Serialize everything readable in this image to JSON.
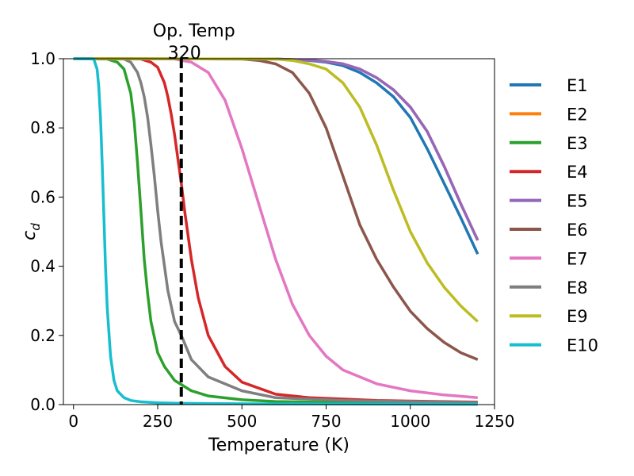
{
  "chart_data": {
    "type": "line",
    "title": "",
    "xlabel": "Temperature (K)",
    "ylabel": "c_d",
    "xlim": [
      -30,
      1250
    ],
    "ylim": [
      0,
      1
    ],
    "xticks": [
      "0",
      "250",
      "500",
      "750",
      "1000",
      "1250"
    ],
    "xtick_values": [
      0,
      250,
      500,
      750,
      1000,
      1250
    ],
    "yticks": [
      "0.0",
      "0.2",
      "0.4",
      "0.6",
      "0.8",
      "1.0"
    ],
    "ytick_values": [
      0,
      0.2,
      0.4,
      0.6,
      0.8,
      1.0
    ],
    "grid": false,
    "legend_position": "outside-right",
    "series": [
      {
        "name": "E1",
        "color": "#1f77b4",
        "x": [
          0,
          600,
          700,
          750,
          800,
          850,
          900,
          950,
          1000,
          1050,
          1100,
          1150,
          1200
        ],
        "y": [
          1.0,
          0.999,
          0.995,
          0.99,
          0.98,
          0.96,
          0.93,
          0.89,
          0.83,
          0.74,
          0.64,
          0.54,
          0.435
        ]
      },
      {
        "name": "E2",
        "color": "#ff7f0e",
        "x": [
          0,
          600,
          700,
          750,
          800,
          850,
          900,
          950,
          1000,
          1050,
          1100,
          1150,
          1200
        ],
        "y": [
          1.0,
          0.999,
          0.996,
          0.992,
          0.985,
          0.97,
          0.945,
          0.91,
          0.86,
          0.79,
          0.69,
          0.58,
          0.475
        ]
      },
      {
        "name": "E3",
        "color": "#2ca02c",
        "x": [
          0,
          100,
          130,
          150,
          170,
          180,
          190,
          200,
          210,
          220,
          230,
          250,
          270,
          300,
          350,
          400,
          500,
          600,
          800,
          1200
        ],
        "y": [
          1.0,
          0.999,
          0.99,
          0.97,
          0.9,
          0.82,
          0.7,
          0.56,
          0.42,
          0.32,
          0.24,
          0.15,
          0.11,
          0.07,
          0.04,
          0.025,
          0.014,
          0.009,
          0.006,
          0.004
        ]
      },
      {
        "name": "E4",
        "color": "#d62728",
        "x": [
          0,
          200,
          230,
          250,
          270,
          280,
          290,
          300,
          310,
          320,
          330,
          350,
          370,
          400,
          450,
          500,
          600,
          700,
          900,
          1200
        ],
        "y": [
          1.0,
          0.999,
          0.99,
          0.975,
          0.93,
          0.89,
          0.84,
          0.78,
          0.71,
          0.64,
          0.56,
          0.42,
          0.31,
          0.2,
          0.11,
          0.065,
          0.03,
          0.02,
          0.012,
          0.007
        ]
      },
      {
        "name": "E5",
        "color": "#9467bd",
        "x": [
          0,
          600,
          700,
          750,
          800,
          850,
          900,
          950,
          1000,
          1050,
          1100,
          1150,
          1200
        ],
        "y": [
          1.0,
          0.999,
          0.996,
          0.992,
          0.985,
          0.97,
          0.945,
          0.91,
          0.86,
          0.79,
          0.69,
          0.58,
          0.475
        ]
      },
      {
        "name": "E6",
        "color": "#8c564b",
        "x": [
          0,
          500,
          550,
          600,
          650,
          700,
          750,
          800,
          850,
          900,
          950,
          1000,
          1050,
          1100,
          1150,
          1200
        ],
        "y": [
          1.0,
          0.999,
          0.995,
          0.985,
          0.96,
          0.9,
          0.8,
          0.66,
          0.52,
          0.42,
          0.34,
          0.27,
          0.22,
          0.18,
          0.15,
          0.13
        ]
      },
      {
        "name": "E7",
        "color": "#e377c2",
        "x": [
          0,
          300,
          350,
          400,
          450,
          500,
          550,
          600,
          650,
          700,
          750,
          800,
          900,
          1000,
          1100,
          1200
        ],
        "y": [
          1.0,
          0.999,
          0.99,
          0.96,
          0.88,
          0.74,
          0.58,
          0.42,
          0.29,
          0.2,
          0.14,
          0.1,
          0.06,
          0.04,
          0.028,
          0.02
        ]
      },
      {
        "name": "E8",
        "color": "#7f7f7f",
        "x": [
          0,
          150,
          170,
          190,
          200,
          210,
          220,
          230,
          240,
          250,
          260,
          280,
          300,
          320,
          350,
          400,
          500,
          600,
          800,
          1200
        ],
        "y": [
          1.0,
          0.999,
          0.99,
          0.96,
          0.93,
          0.89,
          0.83,
          0.75,
          0.66,
          0.56,
          0.47,
          0.33,
          0.24,
          0.2,
          0.13,
          0.08,
          0.04,
          0.02,
          0.012,
          0.006
        ]
      },
      {
        "name": "E9",
        "color": "#bcbd22",
        "x": [
          0,
          600,
          650,
          700,
          750,
          800,
          850,
          900,
          950,
          1000,
          1050,
          1100,
          1150,
          1200
        ],
        "y": [
          1.0,
          0.999,
          0.995,
          0.985,
          0.97,
          0.93,
          0.86,
          0.75,
          0.62,
          0.5,
          0.41,
          0.34,
          0.285,
          0.24
        ]
      },
      {
        "name": "E10",
        "color": "#17becf",
        "x": [
          0,
          60,
          70,
          75,
          80,
          85,
          90,
          95,
          100,
          110,
          120,
          130,
          150,
          170,
          200,
          250,
          300,
          400,
          600,
          1200
        ],
        "y": [
          1.0,
          0.999,
          0.97,
          0.92,
          0.83,
          0.7,
          0.55,
          0.4,
          0.28,
          0.14,
          0.07,
          0.04,
          0.02,
          0.012,
          0.008,
          0.005,
          0.004,
          0.003,
          0.002,
          0.001
        ]
      }
    ],
    "vline": {
      "x": 320,
      "label_top": "Op. Temp",
      "label_bottom": "320",
      "color": "#000000",
      "style": "dashed"
    }
  }
}
